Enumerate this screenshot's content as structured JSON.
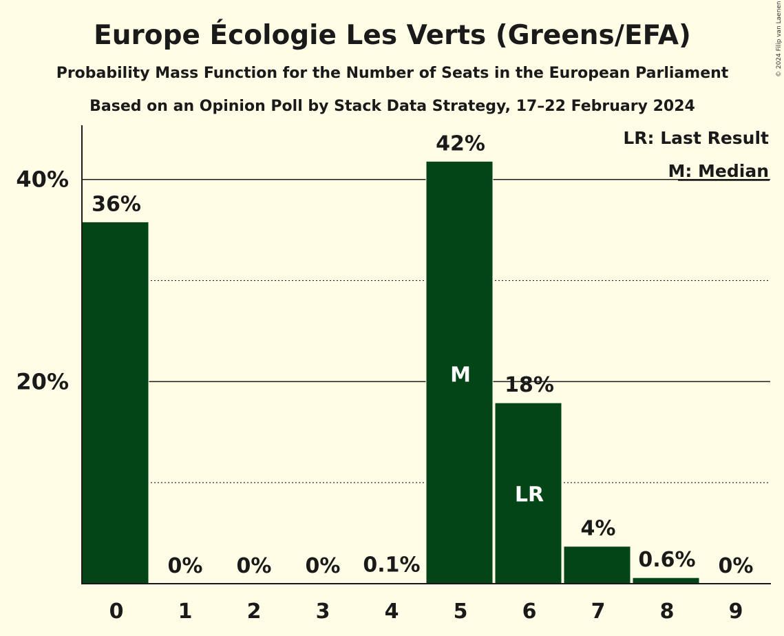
{
  "chart_data": {
    "type": "bar",
    "title": "Europe Écologie Les Verts (Greens/EFA)",
    "subtitle": "Probability Mass Function for the Number of Seats in the European Parliament",
    "subtitle2": "Based on an Opinion Poll by Stack Data Strategy, 17–22 February 2024",
    "copyright": "© 2024 Filip van Laenen",
    "categories": [
      "0",
      "1",
      "2",
      "3",
      "4",
      "5",
      "6",
      "7",
      "8",
      "9"
    ],
    "values": [
      35.8,
      0,
      0,
      0,
      0.1,
      41.8,
      17.9,
      3.7,
      0.6,
      0
    ],
    "value_labels": [
      "36%",
      "0%",
      "0%",
      "0%",
      "0.1%",
      "42%",
      "18%",
      "4%",
      "0.6%",
      "0%"
    ],
    "inner_labels": {
      "5": "M",
      "6": "LR"
    },
    "ylim": [
      0,
      45.5
    ],
    "yticks": [
      {
        "value": 20,
        "label": "20%"
      },
      {
        "value": 40,
        "label": "40%"
      }
    ],
    "minor_gridlines": [
      10,
      30
    ],
    "legend": {
      "placement": "top-right",
      "items": [
        "LR: Last Result",
        "M: Median"
      ]
    },
    "colors": {
      "bar": "#034516",
      "background": "#fffde6",
      "text": "#1a1a1a"
    }
  }
}
